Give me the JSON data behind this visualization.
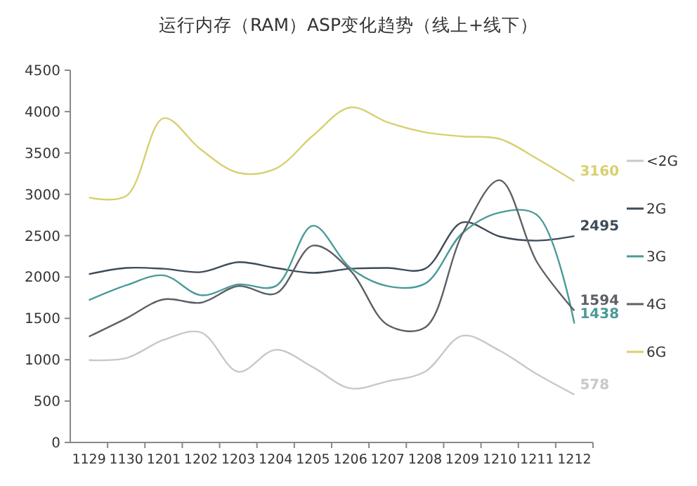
{
  "chart_data": {
    "type": "line",
    "title": "运行内存（RAM）ASP变化趋势（线上+线下）",
    "categories": [
      "1129",
      "1130",
      "1201",
      "1202",
      "1203",
      "1204",
      "1205",
      "1206",
      "1207",
      "1208",
      "1209",
      "1210",
      "1211",
      "1212"
    ],
    "ylim": [
      0,
      4500
    ],
    "yticks": [
      0,
      500,
      1000,
      1500,
      2000,
      2500,
      3000,
      3500,
      4000,
      4500
    ],
    "grid": false,
    "legend": "right",
    "marker": "none",
    "line_style": "solid",
    "series": [
      {
        "name": "<2G",
        "color": "#c8c8c8",
        "values": [
          995,
          1020,
          1240,
          1330,
          855,
          1120,
          910,
          655,
          740,
          855,
          1290,
          1110,
          825,
          578
        ],
        "value_labels": [
          null,
          null,
          null,
          null,
          null,
          null,
          null,
          null,
          null,
          null,
          null,
          null,
          null,
          "578"
        ]
      },
      {
        "name": "2G",
        "color": "#3e4b59",
        "values": [
          2035,
          2110,
          2100,
          2060,
          2180,
          2110,
          2050,
          2100,
          2110,
          2100,
          2660,
          2490,
          2440,
          2495
        ],
        "value_labels": [
          null,
          null,
          null,
          null,
          null,
          null,
          null,
          null,
          null,
          null,
          null,
          null,
          null,
          "2495"
        ]
      },
      {
        "name": "3G",
        "color": "#4a9a98",
        "values": [
          1720,
          1900,
          2020,
          1780,
          1910,
          1890,
          2620,
          2110,
          1890,
          1920,
          2530,
          2780,
          2750,
          1438
        ],
        "value_labels": [
          null,
          null,
          null,
          null,
          null,
          null,
          null,
          null,
          null,
          null,
          null,
          null,
          null,
          "1438"
        ]
      },
      {
        "name": "4G",
        "color": "#5c6066",
        "values": [
          1280,
          1500,
          1730,
          1690,
          1890,
          1800,
          2380,
          2080,
          1420,
          1390,
          2520,
          3170,
          2180,
          1594
        ],
        "value_labels": [
          null,
          null,
          null,
          null,
          null,
          null,
          null,
          null,
          null,
          null,
          null,
          null,
          null,
          "1594"
        ]
      },
      {
        "name": "6G",
        "color": "#d8d070",
        "values": [
          2960,
          2980,
          3920,
          3540,
          3260,
          3310,
          3710,
          4050,
          3870,
          3750,
          3700,
          3670,
          3430,
          3160
        ],
        "value_labels": [
          null,
          null,
          null,
          null,
          null,
          null,
          null,
          null,
          null,
          null,
          null,
          null,
          null,
          "3160"
        ]
      }
    ]
  }
}
